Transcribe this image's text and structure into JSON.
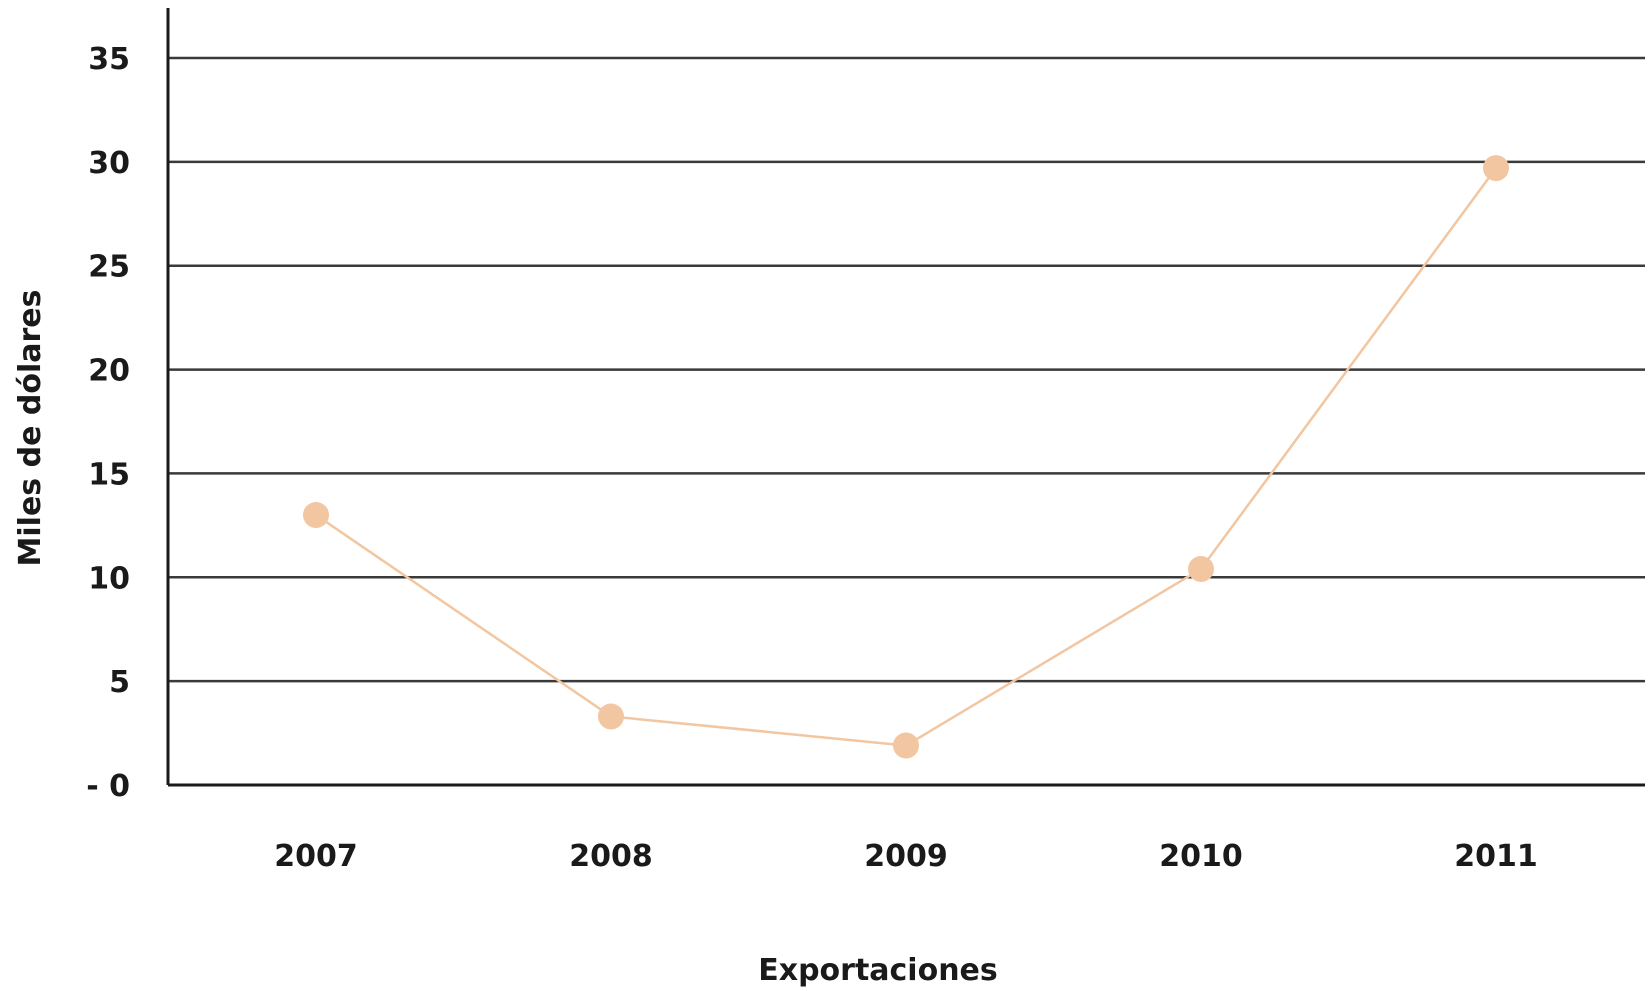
{
  "chart_data": {
    "type": "line",
    "title": "",
    "xlabel": "Exportaciones",
    "ylabel": "Miles de dólares",
    "categories": [
      "2007",
      "2008",
      "2009",
      "2010",
      "2011"
    ],
    "series": [
      {
        "values": [
          13,
          3.3,
          1.9,
          10.4,
          29.7
        ]
      }
    ],
    "ylim": [
      0,
      35
    ],
    "yticks": [
      {
        "value": 0,
        "label": "- 0"
      },
      {
        "value": 5,
        "label": "5"
      },
      {
        "value": 10,
        "label": "10"
      },
      {
        "value": 15,
        "label": "15"
      },
      {
        "value": 20,
        "label": "20"
      },
      {
        "value": 25,
        "label": "25"
      },
      {
        "value": 30,
        "label": "30"
      },
      {
        "value": 35,
        "label": "35"
      }
    ],
    "grid": true,
    "legend": "none",
    "colors": {
      "series": "#f2c6a0",
      "grid": "#3a3a3a",
      "text": "#1a1a1a"
    }
  }
}
